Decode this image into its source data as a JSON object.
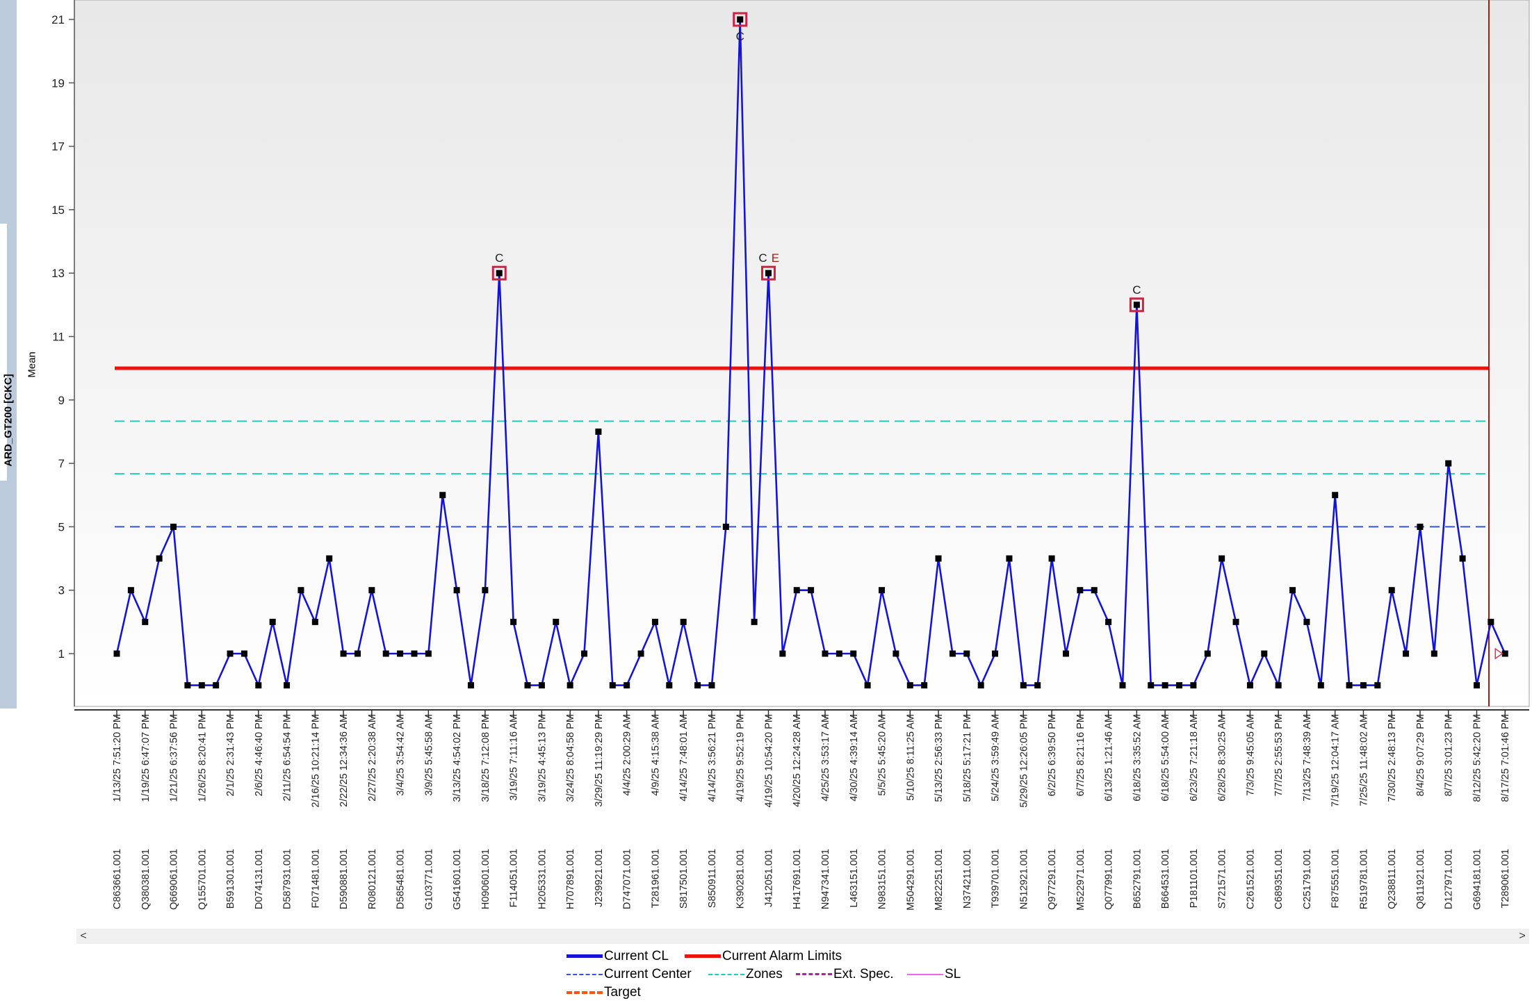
{
  "chart_data": {
    "type": "line",
    "ylabel": "ARD_GT200 [CKC]",
    "ylabel_sub": "Mean",
    "ylim": [
      -1.6,
      21.6
    ],
    "yticks": [
      1,
      3,
      5,
      7,
      9,
      11,
      13,
      15,
      17,
      19,
      21
    ],
    "alarm_limit": 10,
    "center_line": 5,
    "zones": [
      6.67,
      8.33
    ],
    "grid": false,
    "legend_position": "bottom",
    "colors": {
      "line": "#1414d8",
      "alarm": "#ee1111",
      "center": "#3355dd",
      "zones": "#22ccbb",
      "ext_spec": "#aa22aa",
      "sl": "#ee66ee",
      "target": "#ff5511",
      "violation_box": "#cc2244",
      "plot_bg_top": "#e8e8e8",
      "plot_bg_bottom": "#ffffff"
    },
    "series": [
      {
        "values": [
          1,
          3,
          2,
          4,
          5,
          0,
          0,
          0,
          1,
          1,
          0,
          2,
          0,
          3,
          2,
          4,
          1,
          1,
          3,
          1,
          1,
          1,
          1,
          6,
          3,
          0,
          3,
          13,
          2,
          0,
          0,
          2,
          0,
          1,
          8,
          0,
          0,
          1,
          2,
          0,
          2,
          0,
          0,
          5,
          21,
          2,
          13,
          1,
          3,
          3,
          1,
          1,
          1,
          0,
          3,
          1,
          0,
          0,
          4,
          1,
          1,
          0,
          1,
          4,
          0,
          0,
          4,
          1,
          3,
          3,
          2,
          0,
          12,
          0,
          0,
          0,
          0,
          1,
          4,
          2,
          0,
          1,
          0,
          3,
          2,
          0,
          6,
          0,
          0,
          0,
          3,
          1,
          5,
          1,
          7,
          4,
          0,
          2,
          1
        ]
      }
    ],
    "violations": [
      {
        "index": 27,
        "label": "C"
      },
      {
        "index": 44,
        "label": "C"
      },
      {
        "index": 46,
        "label": "C",
        "extra": "E"
      },
      {
        "index": 72,
        "label": "C"
      }
    ],
    "x_ticks": [
      {
        "index": 0,
        "date": "1/13/25 7:51:20 PM",
        "id": "C863661.001"
      },
      {
        "index": 2,
        "date": "1/19/25 6:47:07 PM",
        "id": "Q380381.001"
      },
      {
        "index": 4,
        "date": "1/21/25 6:37:56 PM",
        "id": "Q669061.001"
      },
      {
        "index": 6,
        "date": "1/26/25 8:20:41 PM",
        "id": "Q155701.001"
      },
      {
        "index": 8,
        "date": "2/1/25 2:31:43 PM",
        "id": "B591301.001"
      },
      {
        "index": 10,
        "date": "2/6/25 4:46:40 PM",
        "id": "D074131.001"
      },
      {
        "index": 12,
        "date": "2/11/25 6:54:54 PM",
        "id": "D587931.001"
      },
      {
        "index": 14,
        "date": "2/16/25 10:21:14 PM",
        "id": "F071481.001"
      },
      {
        "index": 16,
        "date": "2/22/25 12:34:36 AM",
        "id": "D590881.001"
      },
      {
        "index": 18,
        "date": "2/27/25 2:20:38 AM",
        "id": "R080121.001"
      },
      {
        "index": 20,
        "date": "3/4/25 3:54:42 AM",
        "id": "D585481.001"
      },
      {
        "index": 22,
        "date": "3/9/25 5:45:58 AM",
        "id": "G103771.001"
      },
      {
        "index": 24,
        "date": "3/13/25 4:54:02 PM",
        "id": "G541601.001"
      },
      {
        "index": 26,
        "date": "3/18/25 7:12:08 PM",
        "id": "H090601.001"
      },
      {
        "index": 28,
        "date": "3/19/25 7:11:16 AM",
        "id": "F114051.001"
      },
      {
        "index": 30,
        "date": "3/19/25 4:45:13 PM",
        "id": "H205331.001"
      },
      {
        "index": 32,
        "date": "3/24/25 8:04:58 PM",
        "id": "H707891.001"
      },
      {
        "index": 34,
        "date": "3/29/25 11:19:29 PM",
        "id": "J239921.001"
      },
      {
        "index": 36,
        "date": "4/4/25 2:00:29 AM",
        "id": "D747071.001"
      },
      {
        "index": 38,
        "date": "4/9/25 4:15:38 AM",
        "id": "T281961.001"
      },
      {
        "index": 40,
        "date": "4/14/25 7:48:01 AM",
        "id": "S817501.001"
      },
      {
        "index": 42,
        "date": "4/14/25 3:56:21 PM",
        "id": "S850911.001"
      },
      {
        "index": 44,
        "date": "4/19/25 9:52:19 PM",
        "id": "K390281.001"
      },
      {
        "index": 46,
        "date": "4/19/25 10:54:20 PM",
        "id": "J412051.001"
      },
      {
        "index": 48,
        "date": "4/20/25 12:24:28 AM",
        "id": "H417691.001"
      },
      {
        "index": 50,
        "date": "4/25/25 3:53:17 AM",
        "id": "N947341.001"
      },
      {
        "index": 52,
        "date": "4/30/25 4:39:14 AM",
        "id": "L463151.001"
      },
      {
        "index": 54,
        "date": "5/5/25 5:45:20 AM",
        "id": "N983151.001"
      },
      {
        "index": 56,
        "date": "5/10/25 8:11:25 AM",
        "id": "M504291.001"
      },
      {
        "index": 58,
        "date": "5/13/25 2:56:33 PM",
        "id": "M822251.001"
      },
      {
        "index": 60,
        "date": "5/18/25 5:17:21 PM",
        "id": "N374211.001"
      },
      {
        "index": 62,
        "date": "5/24/25 3:59:49 AM",
        "id": "T939701.001"
      },
      {
        "index": 64,
        "date": "5/29/25 12:26:05 PM",
        "id": "N512921.001"
      },
      {
        "index": 66,
        "date": "6/2/25 6:39:50 PM",
        "id": "Q977291.001"
      },
      {
        "index": 68,
        "date": "6/7/25 8:21:16 PM",
        "id": "M522971.001"
      },
      {
        "index": 70,
        "date": "6/13/25 1:21:46 AM",
        "id": "Q077991.001"
      },
      {
        "index": 72,
        "date": "6/18/25 3:35:52 AM",
        "id": "B652791.001"
      },
      {
        "index": 74,
        "date": "6/18/25 5:54:00 AM",
        "id": "B664531.001"
      },
      {
        "index": 76,
        "date": "6/23/25 7:21:18 AM",
        "id": "P181101.001"
      },
      {
        "index": 78,
        "date": "6/28/25 8:30:25 AM",
        "id": "S721571.001"
      },
      {
        "index": 80,
        "date": "7/3/25 9:45:05 AM",
        "id": "C261521.001"
      },
      {
        "index": 82,
        "date": "7/7/25 2:55:53 PM",
        "id": "C689351.001"
      },
      {
        "index": 84,
        "date": "7/13/25 7:48:39 AM",
        "id": "C251791.001"
      },
      {
        "index": 86,
        "date": "7/19/25 12:04:17 AM",
        "id": "F875551.001"
      },
      {
        "index": 88,
        "date": "7/25/25 11:48:02 AM",
        "id": "R519781.001"
      },
      {
        "index": 90,
        "date": "7/30/25 2:48:13 PM",
        "id": "Q238811.001"
      },
      {
        "index": 92,
        "date": "8/4/25 9:07:29 PM",
        "id": "Q811921.001"
      },
      {
        "index": 94,
        "date": "8/7/25 3:01:23 PM",
        "id": "D127971.001"
      },
      {
        "index": 96,
        "date": "8/12/25 5:42:20 PM",
        "id": "G694181.001"
      },
      {
        "index": 98,
        "date": "8/17/25 7:01:46 PM",
        "id": "T289061.001"
      }
    ]
  },
  "legend": {
    "current_cl": "Current CL",
    "current_alarm_limits": "Current Alarm Limits",
    "current_center": "Current Center",
    "zones": "Zones",
    "ext_spec": "Ext. Spec.",
    "sl": "SL",
    "target": "Target"
  },
  "scrollbar": {
    "left_arrow": "<",
    "right_arrow": ">"
  }
}
